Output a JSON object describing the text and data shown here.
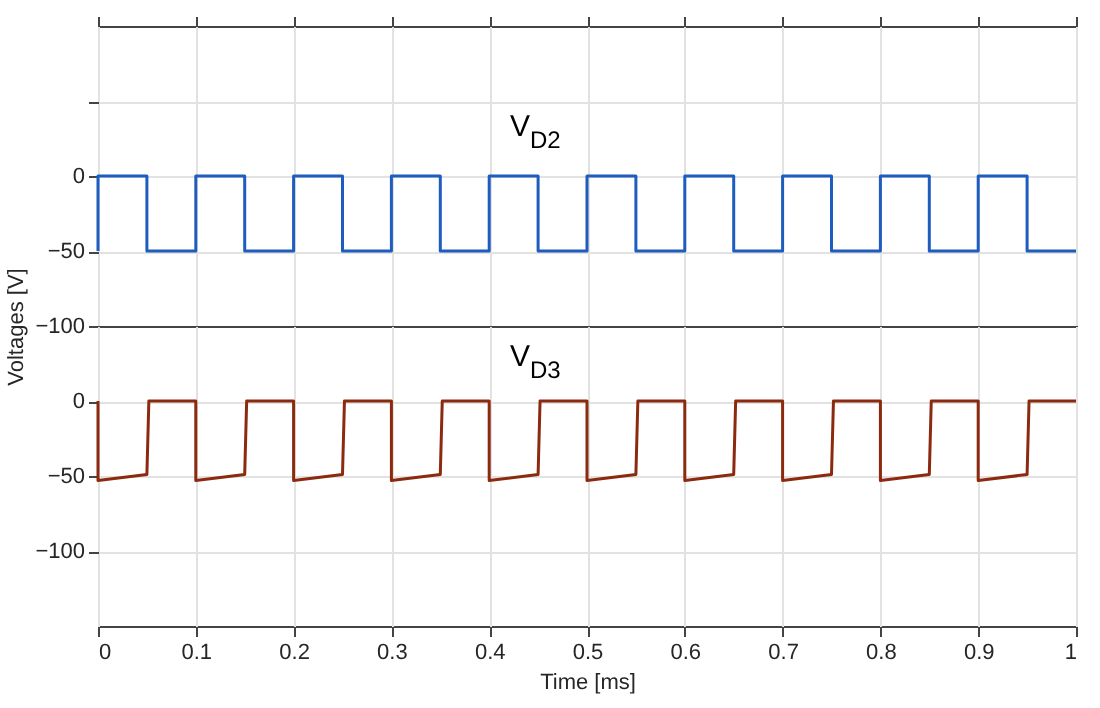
{
  "chart_data": [
    {
      "type": "line",
      "ylabel": "Voltages [V]",
      "tick_labels": "y",
      "grid": true,
      "xlim": [
        0,
        1
      ],
      "xticks": [
        0,
        0.1,
        0.2,
        0.3,
        0.4,
        0.5,
        0.6,
        0.7,
        0.8,
        0.9,
        1
      ],
      "ylim": [
        -100,
        100
      ],
      "yticks": [
        {
          "value": 50,
          "label": null
        },
        0,
        -50,
        -100
      ],
      "series": [
        {
          "name": "V$_{D2}$",
          "color": "#1f5cc0",
          "x": [
            0,
            0,
            0.05,
            0.05,
            0.1,
            0.1,
            0.15,
            0.15,
            0.2,
            0.2,
            0.25,
            0.25,
            0.3,
            0.3,
            0.35,
            0.35,
            0.4,
            0.4,
            0.45,
            0.45,
            0.5,
            0.5,
            0.55,
            0.55,
            0.6,
            0.6,
            0.65,
            0.65,
            0.7,
            0.7,
            0.75,
            0.75,
            0.8,
            0.8,
            0.85,
            0.85,
            0.9,
            0.9,
            0.95,
            0.95,
            1
          ],
          "values": [
            -50,
            0,
            0,
            -50,
            -50,
            0,
            0,
            -50,
            -50,
            0,
            0,
            -50,
            -50,
            0,
            0,
            -50,
            -50,
            0,
            0,
            -50,
            -50,
            0,
            0,
            -50,
            -50,
            0,
            0,
            -50,
            -50,
            0,
            0,
            -50,
            -50,
            0,
            0,
            -50,
            -50,
            0,
            0,
            -50,
            -50
          ]
        }
      ]
    },
    {
      "type": "line",
      "xlabel": "Time [ms]",
      "grid": true,
      "xlim": [
        0,
        1
      ],
      "xticks": [
        0,
        0.1,
        0.2,
        0.3,
        0.4,
        0.5,
        0.6,
        0.7,
        0.8,
        0.9,
        1
      ],
      "ylim": [
        -150,
        50
      ],
      "yticks": [
        0,
        -50,
        -100
      ],
      "series": [
        {
          "name": "V$_{D3}$",
          "color": "#8b2a0e",
          "x": [
            0,
            0,
            0.05,
            0.052,
            0.1,
            0.1,
            0.15,
            0.152,
            0.2,
            0.2,
            0.25,
            0.252,
            0.3,
            0.3,
            0.35,
            0.352,
            0.4,
            0.4,
            0.45,
            0.452,
            0.5,
            0.5,
            0.55,
            0.552,
            0.6,
            0.6,
            0.65,
            0.652,
            0.7,
            0.7,
            0.75,
            0.752,
            0.8,
            0.8,
            0.85,
            0.852,
            0.9,
            0.9,
            0.95,
            0.952,
            1
          ],
          "values": [
            0,
            -53,
            -49,
            0,
            0,
            -53,
            -49,
            0,
            0,
            -53,
            -49,
            0,
            0,
            -53,
            -49,
            0,
            0,
            -53,
            -49,
            0,
            0,
            -53,
            -49,
            0,
            0,
            -53,
            -49,
            0,
            0,
            -53,
            -49,
            0,
            0,
            -53,
            -49,
            0,
            0,
            -53,
            -49,
            0,
            0
          ]
        }
      ]
    }
  ]
}
